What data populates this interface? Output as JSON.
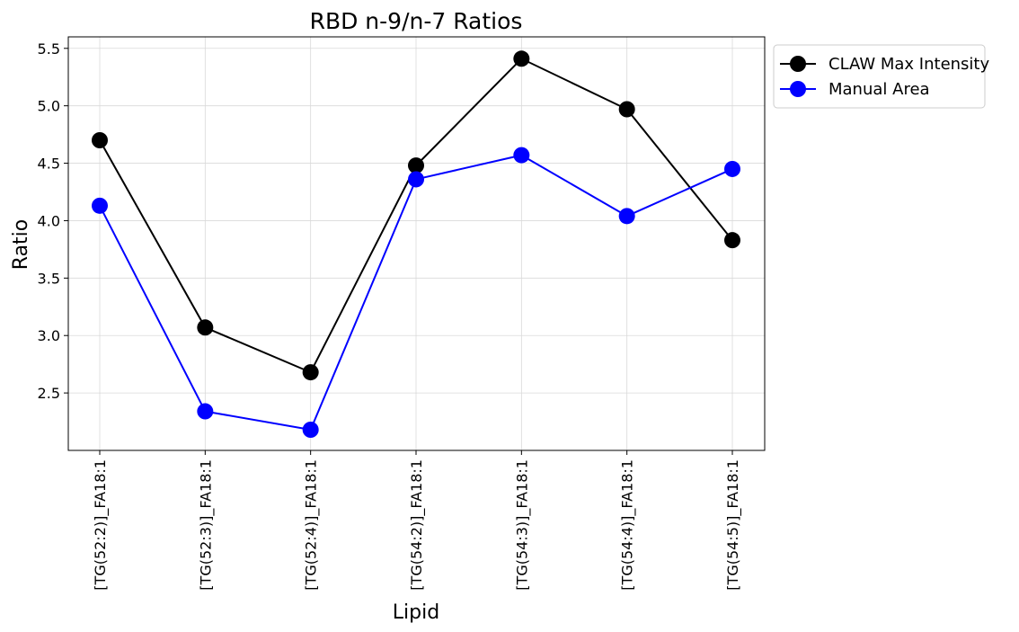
{
  "chart_data": {
    "type": "line",
    "title": "RBD n-9/n-7 Ratios",
    "xlabel": "Lipid",
    "ylabel": "Ratio",
    "categories": [
      "[TG(52:2)]_FA18:1",
      "[TG(52:3)]_FA18:1",
      "[TG(52:4)]_FA18:1",
      "[TG(54:2)]_FA18:1",
      "[TG(54:3)]_FA18:1",
      "[TG(54:4)]_FA18:1",
      "[TG(54:5)]_FA18:1"
    ],
    "series": [
      {
        "name": "CLAW Max Intensity",
        "color": "#000000",
        "values": [
          4.7,
          3.07,
          2.68,
          4.48,
          5.41,
          4.97,
          3.83
        ]
      },
      {
        "name": "Manual Area",
        "color": "#0000ff",
        "values": [
          4.13,
          2.34,
          2.18,
          4.36,
          4.57,
          4.04,
          4.45
        ]
      }
    ],
    "ylim": [
      2.0,
      5.6
    ],
    "yticks": [
      "2.5",
      "3.0",
      "3.5",
      "4.0",
      "4.5",
      "5.0",
      "5.5"
    ],
    "grid": true,
    "legend_position": "outside top-right"
  }
}
